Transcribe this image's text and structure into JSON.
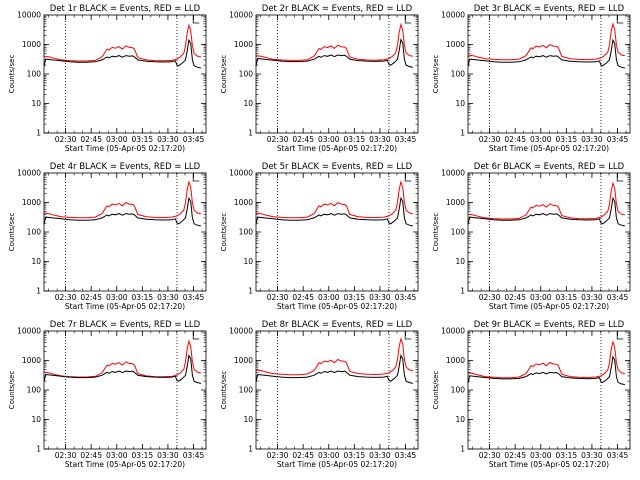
{
  "chart_data": {
    "type": "line",
    "layout": {
      "rows": 3,
      "cols": 3
    },
    "ylabel": "Counts/sec",
    "xlabel": "Start Time (05-Apr-05 02:17:20)",
    "yscale": "log",
    "ylim": [
      1,
      10000
    ],
    "y_ticks": [
      1,
      10,
      100,
      1000,
      10000
    ],
    "y_tick_labels": [
      "1",
      "10",
      "100",
      "1000",
      "10000"
    ],
    "xlim_minutes": [
      0,
      95
    ],
    "x_tick_minutes": [
      12.67,
      27.67,
      42.67,
      57.67,
      72.67,
      87.67
    ],
    "x_tick_labels": [
      "02:30",
      "02:45",
      "03:00",
      "03:15",
      "03:30",
      "03:45"
    ],
    "dotted_vlines_minutes": [
      12.67,
      78
    ],
    "series_names": [
      "BLACK = Events",
      "RED = LLD"
    ],
    "series_colors": {
      "events": "#000000",
      "lld": "#ff0000"
    },
    "base_profiles": {
      "events": [
        [
          0,
          180
        ],
        [
          1,
          320
        ],
        [
          5,
          300
        ],
        [
          10,
          280
        ],
        [
          15,
          260
        ],
        [
          20,
          250
        ],
        [
          25,
          250
        ],
        [
          30,
          260
        ],
        [
          34,
          300
        ],
        [
          37,
          380
        ],
        [
          38,
          350
        ],
        [
          40,
          400
        ],
        [
          42,
          380
        ],
        [
          44,
          420
        ],
        [
          46,
          370
        ],
        [
          48,
          420
        ],
        [
          50,
          400
        ],
        [
          52,
          410
        ],
        [
          53,
          380
        ],
        [
          55,
          300
        ],
        [
          60,
          270
        ],
        [
          65,
          260
        ],
        [
          70,
          255
        ],
        [
          75,
          260
        ],
        [
          77,
          280
        ],
        [
          78,
          200
        ],
        [
          79,
          190
        ],
        [
          81,
          230
        ],
        [
          83,
          300
        ],
        [
          84,
          600
        ],
        [
          85,
          1400
        ],
        [
          86,
          1100
        ],
        [
          87,
          300
        ],
        [
          88,
          190
        ],
        [
          90,
          170
        ],
        [
          92,
          160
        ]
      ],
      "lld": [
        [
          0,
          400
        ],
        [
          3,
          380
        ],
        [
          6,
          340
        ],
        [
          10,
          300
        ],
        [
          15,
          285
        ],
        [
          20,
          275
        ],
        [
          25,
          275
        ],
        [
          30,
          290
        ],
        [
          34,
          380
        ],
        [
          37,
          700
        ],
        [
          38,
          650
        ],
        [
          40,
          800
        ],
        [
          42,
          750
        ],
        [
          44,
          850
        ],
        [
          46,
          700
        ],
        [
          48,
          900
        ],
        [
          50,
          800
        ],
        [
          52,
          780
        ],
        [
          53,
          700
        ],
        [
          55,
          360
        ],
        [
          60,
          300
        ],
        [
          65,
          285
        ],
        [
          70,
          280
        ],
        [
          75,
          290
        ],
        [
          78,
          320
        ],
        [
          80,
          380
        ],
        [
          82,
          500
        ],
        [
          83,
          900
        ],
        [
          84,
          2500
        ],
        [
          85,
          4500
        ],
        [
          86,
          3000
        ],
        [
          87,
          900
        ],
        [
          88,
          500
        ],
        [
          90,
          400
        ],
        [
          92,
          380
        ]
      ]
    },
    "panels": [
      {
        "title": "Det 1r BLACK = Events, RED = LLD",
        "events_scale": 1.0,
        "lld_scale": 1.0
      },
      {
        "title": "Det 2r BLACK = Events, RED = LLD",
        "events_scale": 1.05,
        "lld_scale": 1.05
      },
      {
        "title": "Det 3r BLACK = Events, RED = LLD",
        "events_scale": 1.0,
        "lld_scale": 1.1
      },
      {
        "title": "Det 4r BLACK = Events, RED = LLD",
        "events_scale": 1.0,
        "lld_scale": 1.1
      },
      {
        "title": "Det 5r BLACK = Events, RED = LLD",
        "events_scale": 1.0,
        "lld_scale": 1.1
      },
      {
        "title": "Det 6r BLACK = Events, RED = LLD",
        "events_scale": 1.0,
        "lld_scale": 1.0
      },
      {
        "title": "Det 7r BLACK = Events, RED = LLD",
        "events_scale": 1.05,
        "lld_scale": 1.0
      },
      {
        "title": "Det 8r BLACK = Events, RED = LLD",
        "events_scale": 1.05,
        "lld_scale": 1.2
      },
      {
        "title": "Det 9r BLACK = Events, RED = LLD",
        "events_scale": 0.95,
        "lld_scale": 0.95
      }
    ]
  }
}
